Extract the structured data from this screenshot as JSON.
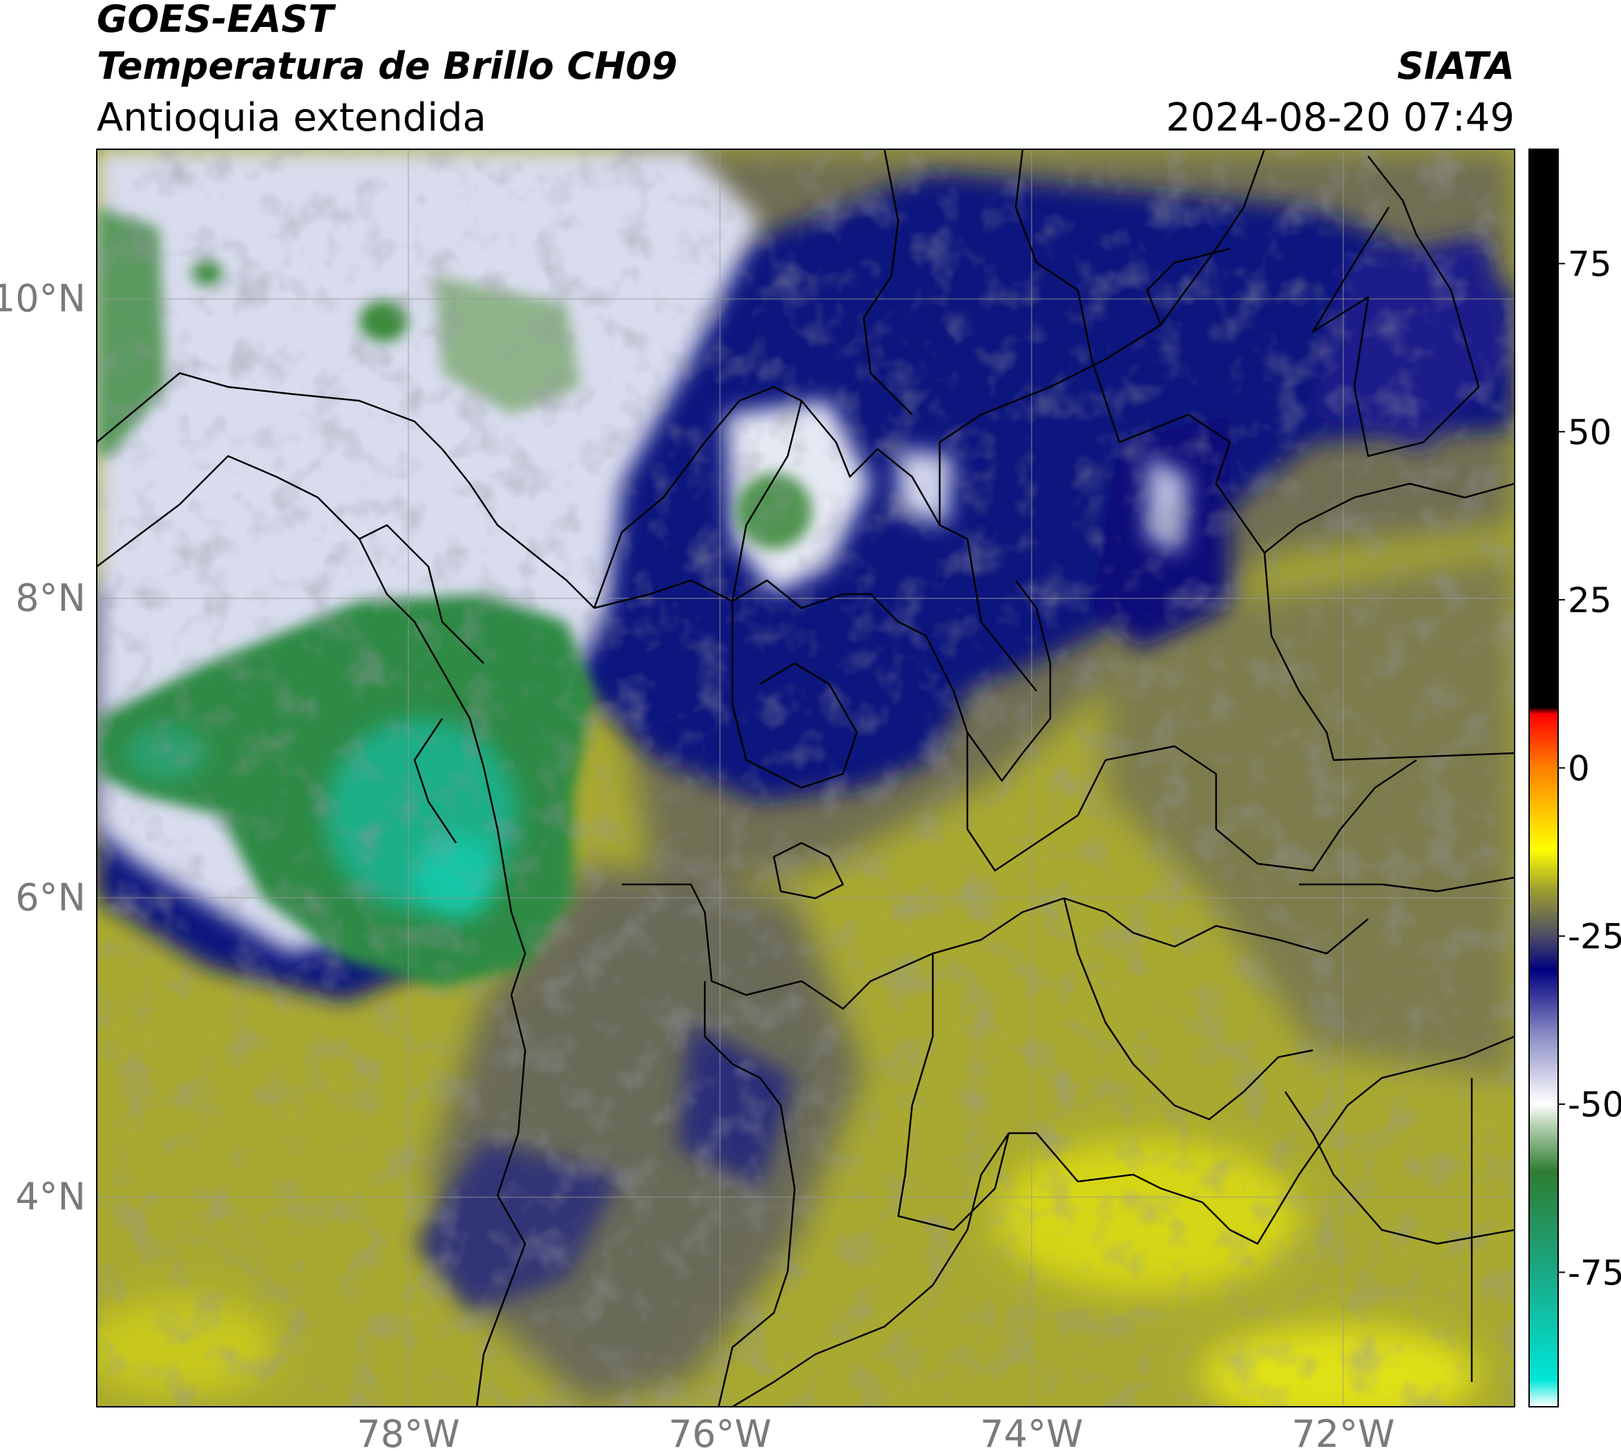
{
  "header": {
    "satellite": "GOES-EAST",
    "product": "Temperatura de Brillo CH09",
    "region": "Antioquia extendida",
    "agency": "SIATA",
    "datetime": "2024-08-20 07:49"
  },
  "map": {
    "lon_range": [
      -80.0,
      -70.9
    ],
    "lat_range": [
      2.6,
      11.0
    ],
    "lon_ticks": [
      {
        "value": -78,
        "label": "78°W"
      },
      {
        "value": -76,
        "label": "76°W"
      },
      {
        "value": -74,
        "label": "74°W"
      },
      {
        "value": -72,
        "label": "72°W"
      }
    ],
    "lat_ticks": [
      {
        "value": 10,
        "label": "10°N"
      },
      {
        "value": 8,
        "label": "8°N"
      },
      {
        "value": 6,
        "label": "6°N"
      },
      {
        "value": 4,
        "label": "4°N"
      }
    ],
    "grid": true
  },
  "colorbar": {
    "range": [
      -95,
      92
    ],
    "ticks": [
      {
        "value": 75,
        "label": "75"
      },
      {
        "value": 50,
        "label": "50"
      },
      {
        "value": 25,
        "label": "25"
      },
      {
        "value": 0,
        "label": "0"
      },
      {
        "value": -25,
        "label": "-25"
      },
      {
        "value": -50,
        "label": "-50"
      },
      {
        "value": -75,
        "label": "-75"
      }
    ],
    "stops": [
      {
        "value": -95,
        "color": "#ffffff"
      },
      {
        "value": -91,
        "color": "#00e6d8"
      },
      {
        "value": -75,
        "color": "#1aa885"
      },
      {
        "value": -60,
        "color": "#2e7d32"
      },
      {
        "value": -53,
        "color": "#b9d4b4"
      },
      {
        "value": -50,
        "color": "#ffffff"
      },
      {
        "value": -40,
        "color": "#8e90c6"
      },
      {
        "value": -30,
        "color": "#00007f"
      },
      {
        "value": -25,
        "color": "#4c4c66"
      },
      {
        "value": -18,
        "color": "#a0a030"
      },
      {
        "value": -12,
        "color": "#ffff00"
      },
      {
        "value": 0,
        "color": "#ff8000"
      },
      {
        "value": 8,
        "color": "#ff0000"
      },
      {
        "value": 9,
        "color": "#000000"
      },
      {
        "value": 92,
        "color": "#000000"
      }
    ]
  }
}
